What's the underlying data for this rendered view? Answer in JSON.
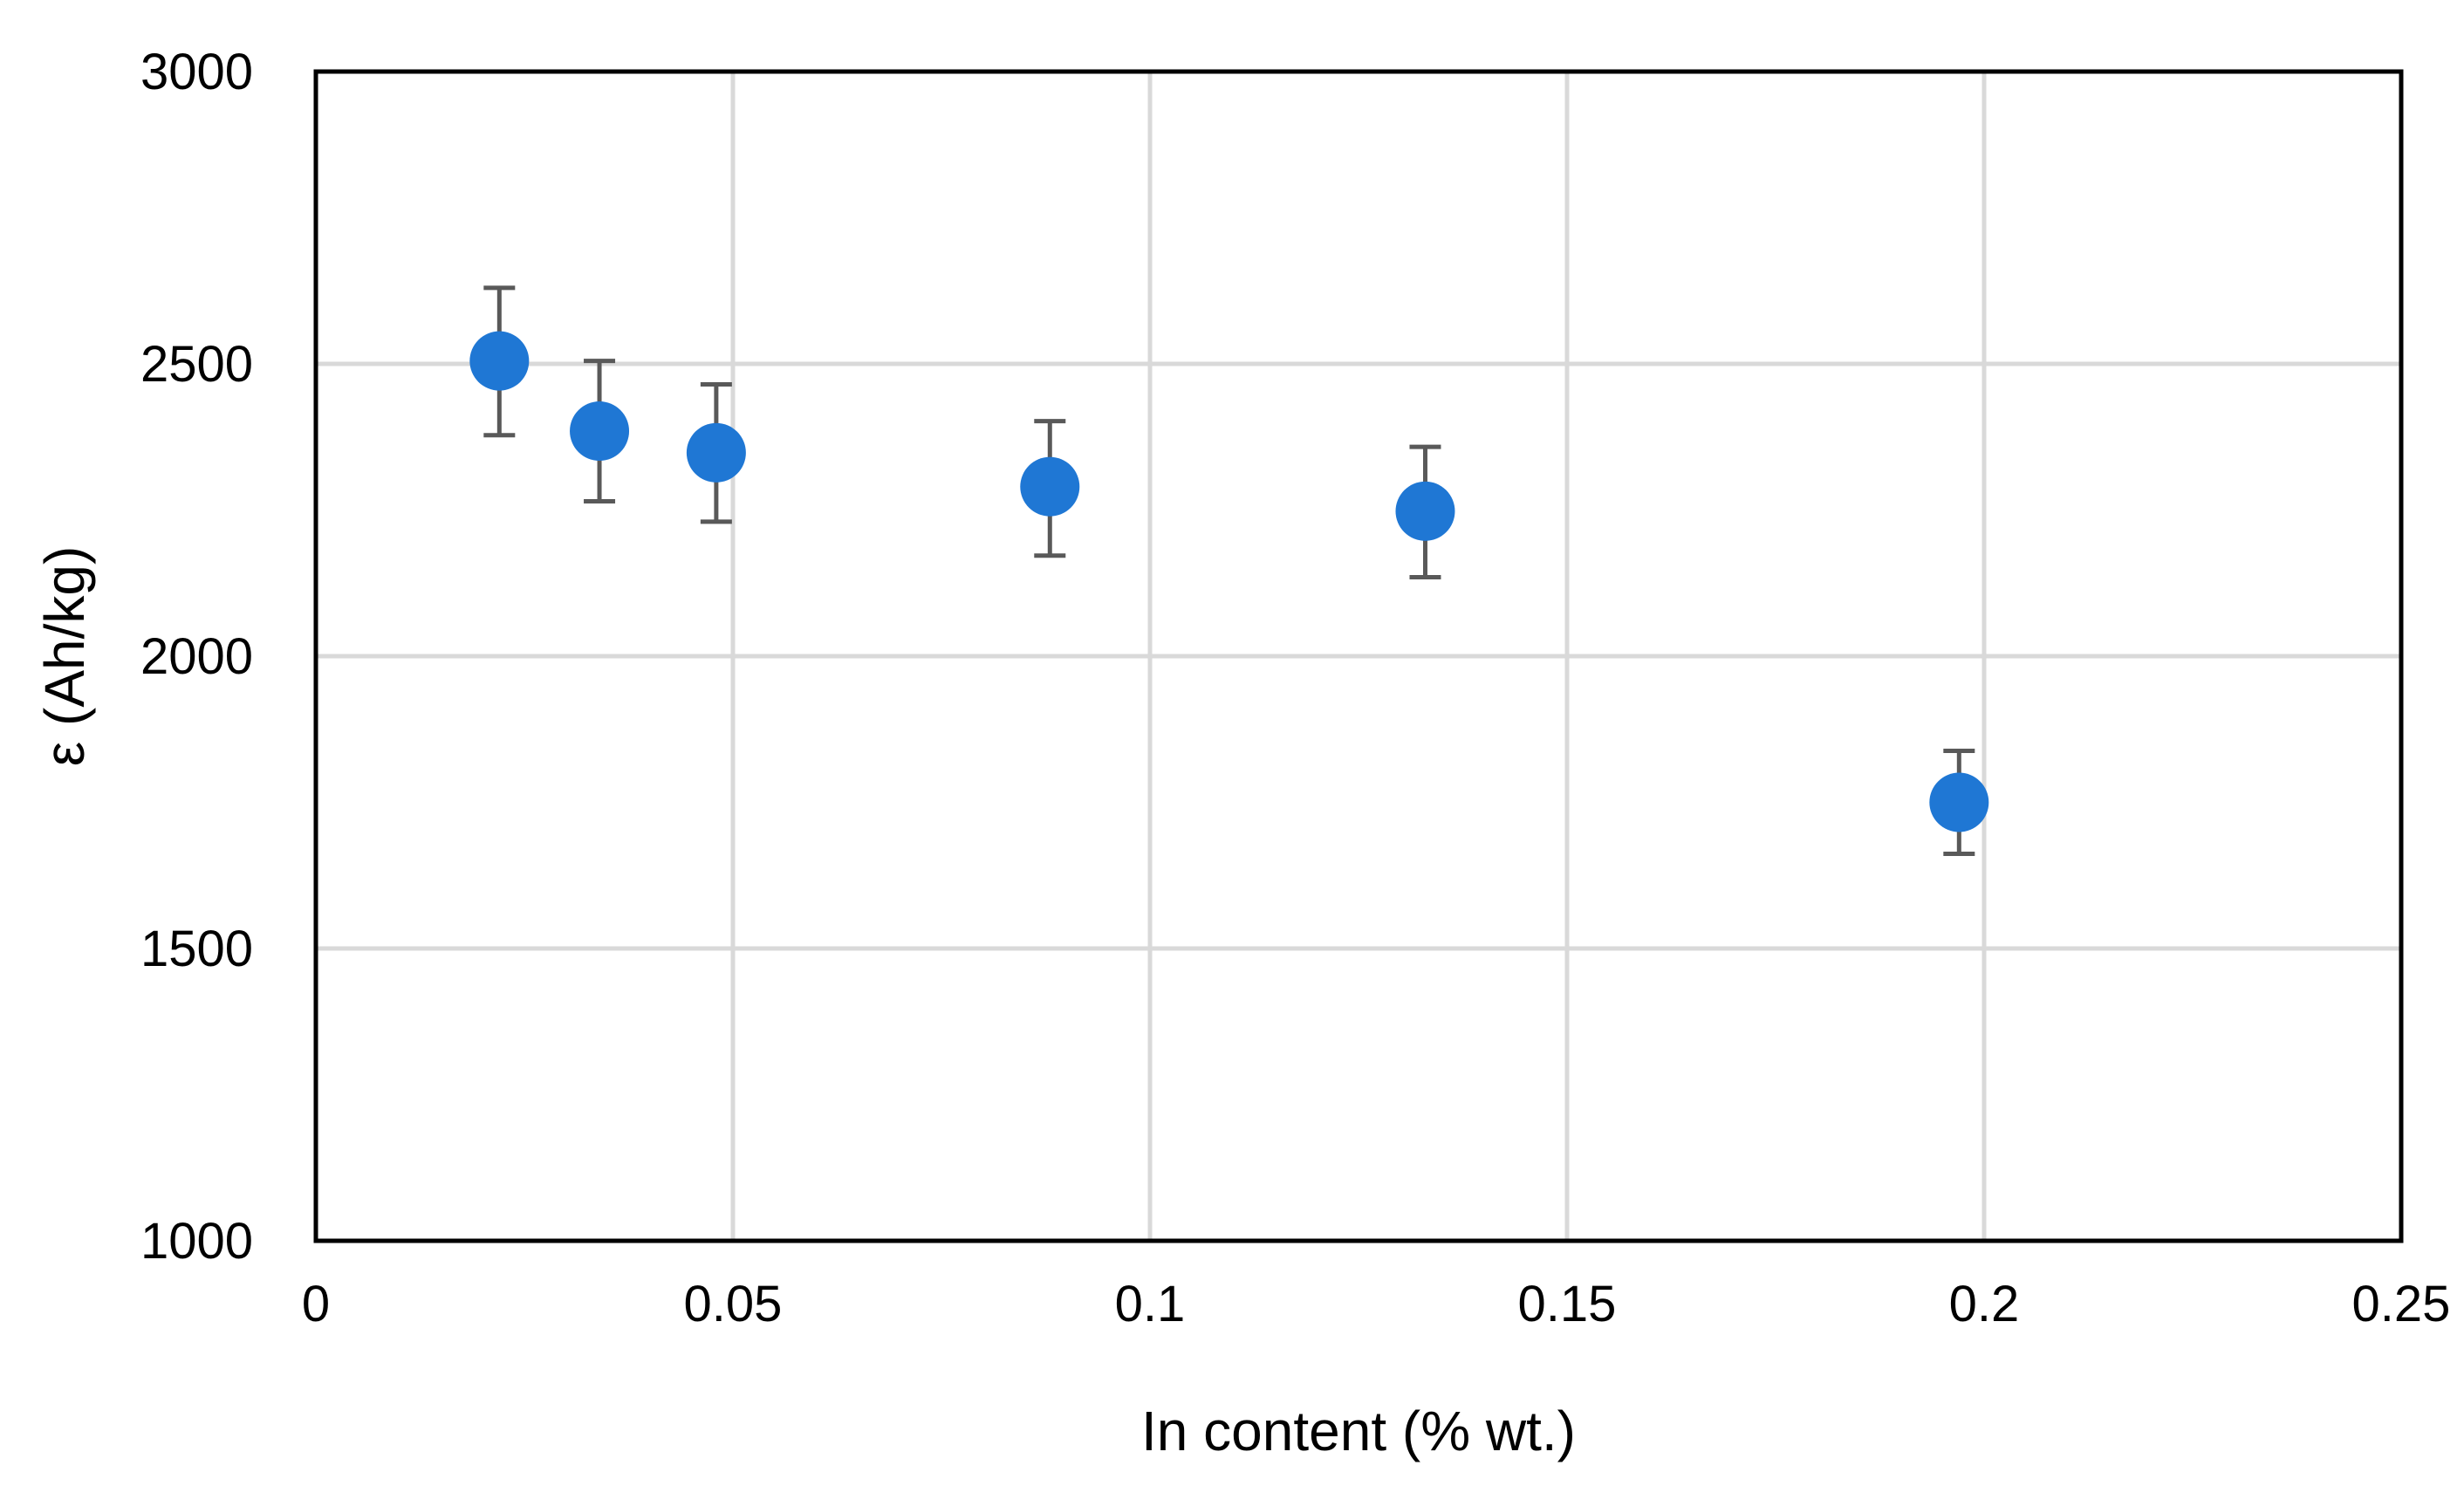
{
  "chart_data": {
    "type": "scatter",
    "title": "",
    "xlabel": "In content (% wt.)",
    "ylabel": "ε (Ah/kg)",
    "xlim": [
      0,
      0.25
    ],
    "ylim": [
      1000,
      3000
    ],
    "x_ticks": [
      0,
      0.05,
      0.1,
      0.15,
      0.2,
      0.25
    ],
    "x_tick_labels": [
      "0",
      "0.05",
      "0.1",
      "0.15",
      "0.2",
      "0.25"
    ],
    "y_ticks": [
      1000,
      1500,
      2000,
      2500,
      3000
    ],
    "y_tick_labels": [
      "1000",
      "1500",
      "2000",
      "2500",
      "3000"
    ],
    "grid": true,
    "legend": "none",
    "series": [
      {
        "color": "#1f77d4",
        "error_bar_color": "#595959",
        "points": [
          {
            "x": 0.022,
            "y": 2505,
            "err_low": 2378,
            "err_high": 2630
          },
          {
            "x": 0.034,
            "y": 2385,
            "err_low": 2265,
            "err_high": 2505
          },
          {
            "x": 0.048,
            "y": 2348,
            "err_low": 2230,
            "err_high": 2465
          },
          {
            "x": 0.088,
            "y": 2290,
            "err_low": 2172,
            "err_high": 2402
          },
          {
            "x": 0.133,
            "y": 2248,
            "err_low": 2135,
            "err_high": 2358
          },
          {
            "x": 0.197,
            "y": 1750,
            "err_low": 1662,
            "err_high": 1838
          }
        ]
      }
    ]
  }
}
